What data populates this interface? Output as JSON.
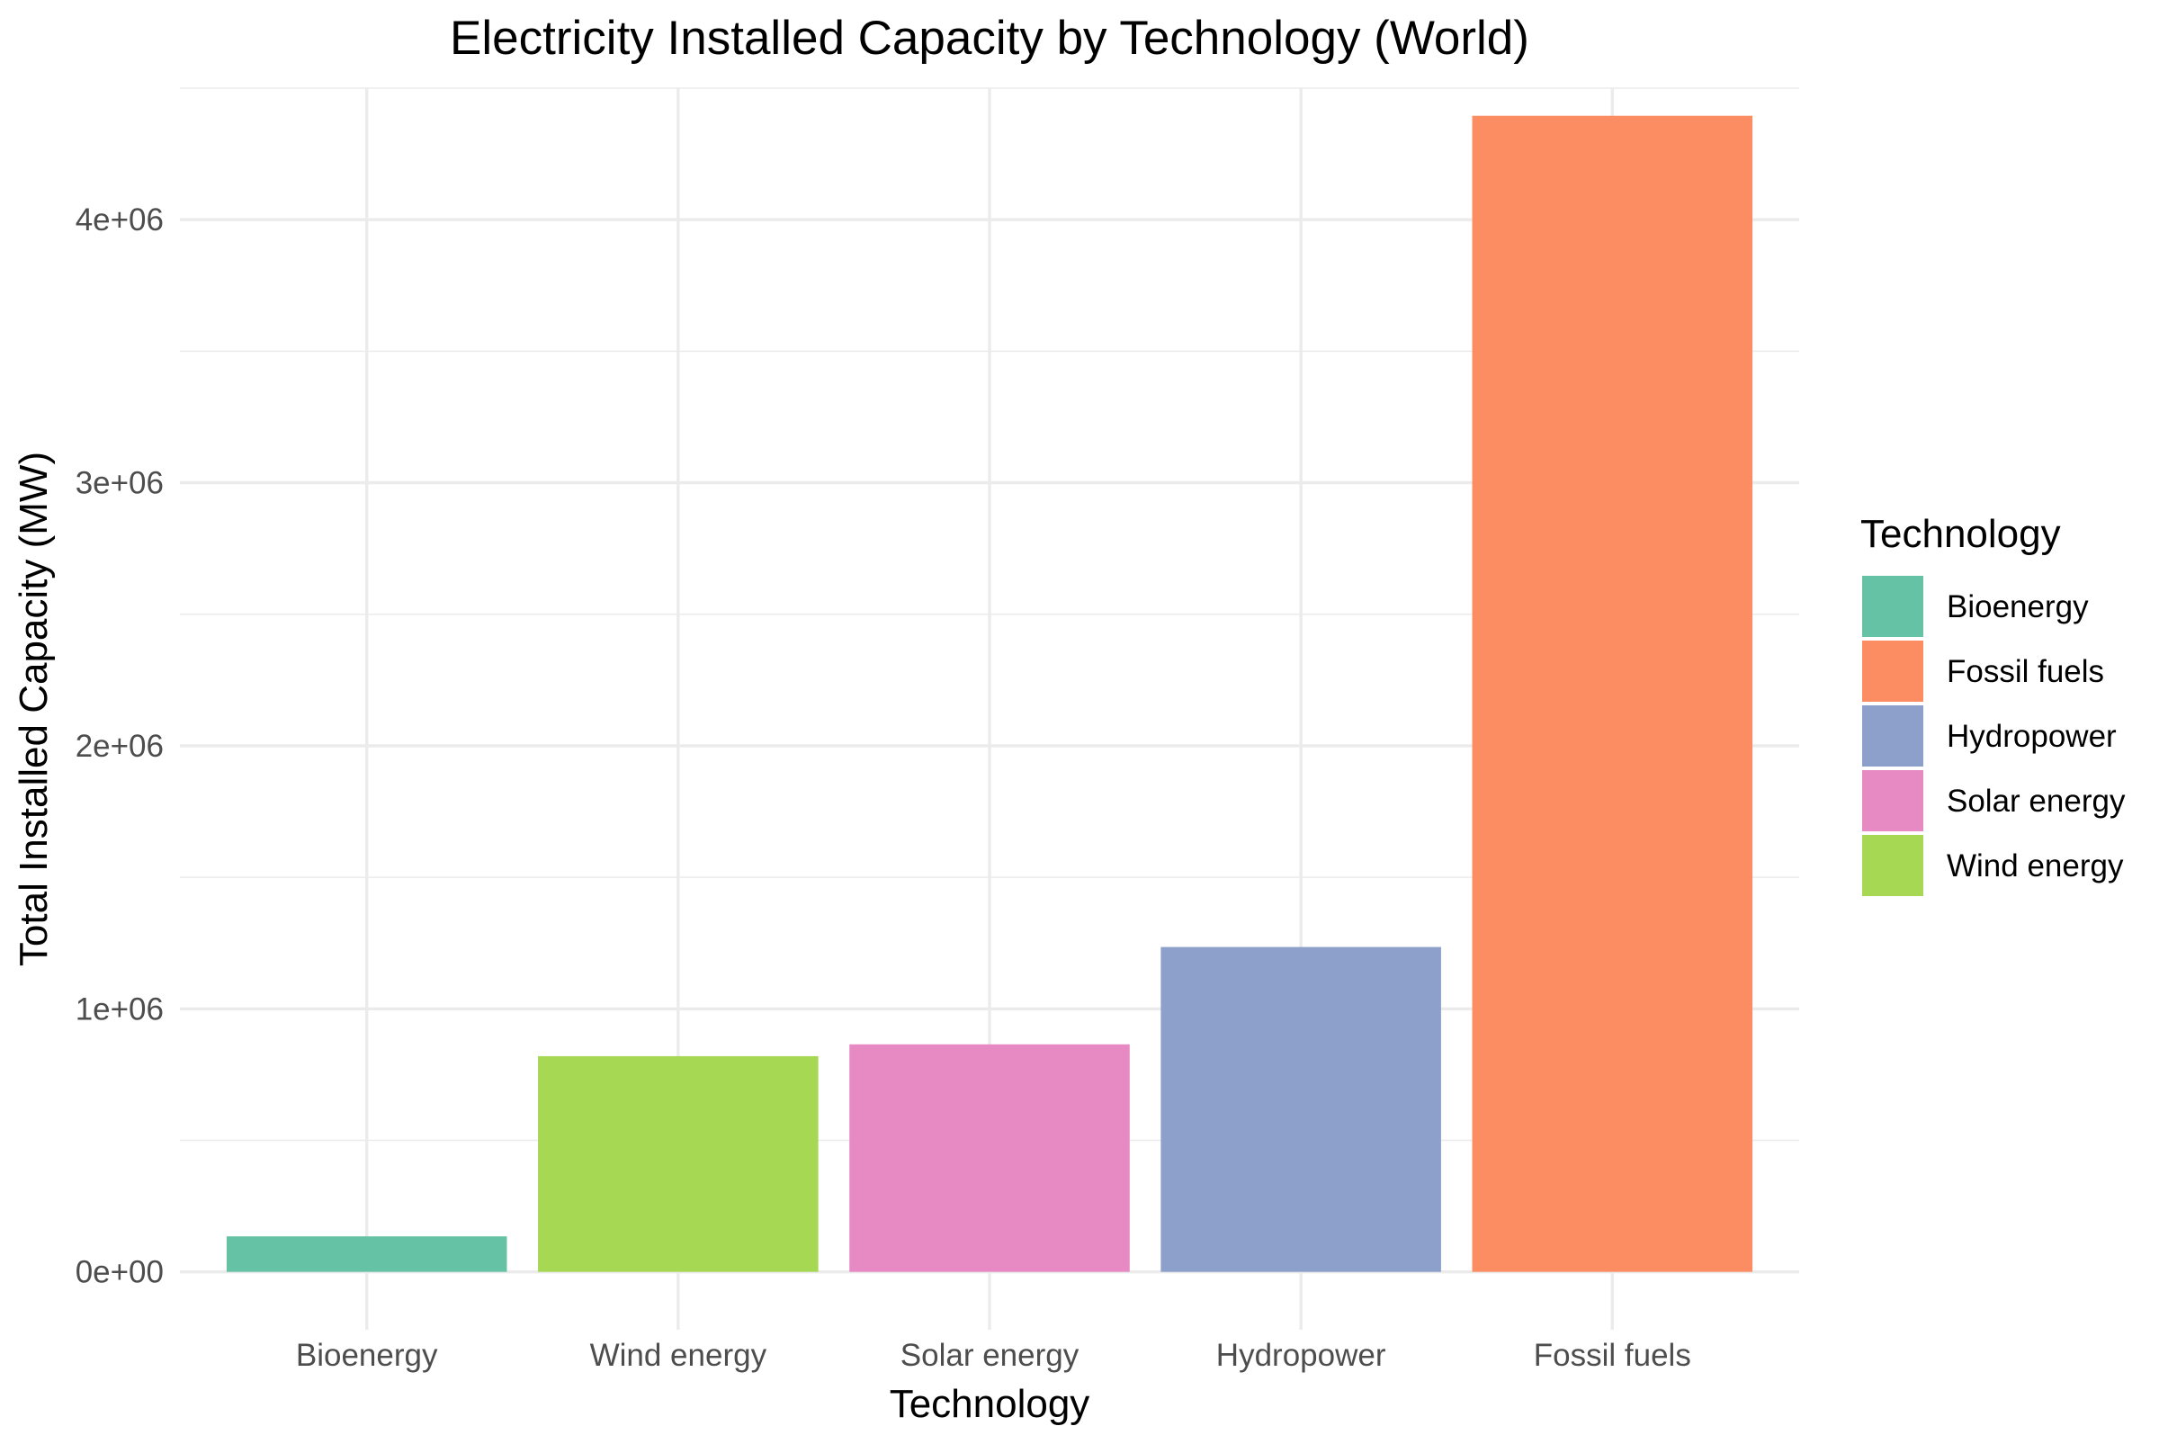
{
  "chart_data": {
    "type": "bar",
    "title": "Electricity Installed Capacity by Technology (World)",
    "xlabel": "Technology",
    "ylabel": "Total Installed Capacity (MW)",
    "categories": [
      "Bioenergy",
      "Wind energy",
      "Solar energy",
      "Hydropower",
      "Fossil fuels"
    ],
    "values": [
      135000,
      820000,
      865000,
      1235000,
      4395000
    ],
    "colors": [
      "#66c2a5",
      "#a6d854",
      "#e78ac3",
      "#8da0cb",
      "#fc8d62"
    ],
    "ylim": [
      -220000,
      4500000
    ],
    "yticks": [
      0,
      1000000,
      2000000,
      3000000,
      4000000
    ],
    "ytick_labels": [
      "0e+00",
      "1e+06",
      "2e+06",
      "3e+06",
      "4e+06"
    ],
    "y_minor_ticks": [
      500000,
      1500000,
      2500000,
      3500000,
      4500000
    ],
    "grid": true,
    "legend": {
      "title": "Technology",
      "position": "right",
      "items": [
        {
          "label": "Bioenergy",
          "color": "#66c2a5"
        },
        {
          "label": "Fossil fuels",
          "color": "#fc8d62"
        },
        {
          "label": "Hydropower",
          "color": "#8da0cb"
        },
        {
          "label": "Solar energy",
          "color": "#e78ac3"
        },
        {
          "label": "Wind energy",
          "color": "#a6d854"
        }
      ]
    }
  }
}
